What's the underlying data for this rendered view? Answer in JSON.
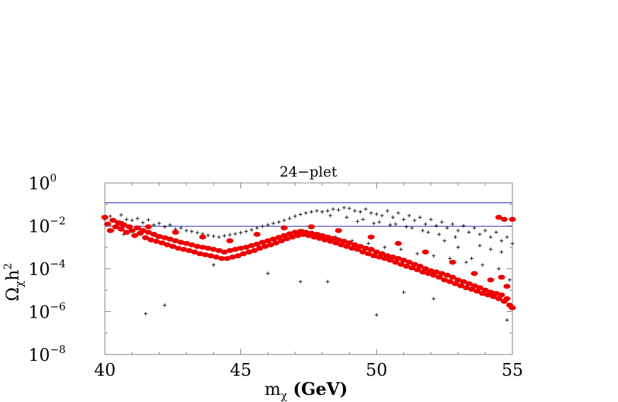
{
  "chart_data": {
    "type": "scatter",
    "title": "24−plet",
    "xlabel": "mχ (GeV)",
    "ylabel": "Ωχh²",
    "xlim": [
      40,
      55
    ],
    "ylim_log10": [
      -8,
      0
    ],
    "y_scale": "log",
    "x_ticks": [
      40,
      45,
      50,
      55
    ],
    "y_ticks": [
      {
        "base": "10",
        "exp": "0"
      },
      {
        "base": "10",
        "exp": "−2"
      },
      {
        "base": "10",
        "exp": "−4"
      },
      {
        "base": "10",
        "exp": "−6"
      },
      {
        "base": "10",
        "exp": "−8"
      }
    ],
    "reference_lines": [
      {
        "y": 0.12,
        "color": "#3a3acd"
      },
      {
        "y": 0.0095,
        "color": "#3a3acd"
      }
    ],
    "series": [
      {
        "marker": "plus",
        "color": "#000000",
        "points": [
          [
            40.0,
            0.02
          ],
          [
            40.2,
            0.028
          ],
          [
            40.4,
            0.015
          ],
          [
            40.6,
            0.032
          ],
          [
            40.8,
            0.02
          ],
          [
            41.0,
            0.018
          ],
          [
            41.2,
            0.022
          ],
          [
            41.4,
            0.014
          ],
          [
            41.6,
            0.019
          ],
          [
            41.8,
            0.011
          ],
          [
            42.0,
            0.013
          ],
          [
            42.2,
            0.009
          ],
          [
            42.4,
            0.011
          ],
          [
            42.6,
            0.007
          ],
          [
            42.8,
            0.008
          ],
          [
            43.0,
            0.006
          ],
          [
            43.2,
            0.0055
          ],
          [
            43.4,
            0.0048
          ],
          [
            43.6,
            0.0042
          ],
          [
            43.8,
            0.0036
          ],
          [
            44.0,
            0.0033
          ],
          [
            44.2,
            0.003
          ],
          [
            44.4,
            0.0034
          ],
          [
            44.6,
            0.0038
          ],
          [
            44.8,
            0.0042
          ],
          [
            45.0,
            0.0048
          ],
          [
            45.2,
            0.0055
          ],
          [
            45.4,
            0.0065
          ],
          [
            45.6,
            0.008
          ],
          [
            45.8,
            0.0095
          ],
          [
            46.0,
            0.011
          ],
          [
            46.2,
            0.013
          ],
          [
            46.4,
            0.015
          ],
          [
            46.6,
            0.018
          ],
          [
            46.8,
            0.022
          ],
          [
            47.0,
            0.028
          ],
          [
            47.2,
            0.034
          ],
          [
            47.4,
            0.04
          ],
          [
            47.6,
            0.045
          ],
          [
            47.8,
            0.05
          ],
          [
            48.0,
            0.045
          ],
          [
            48.2,
            0.05
          ],
          [
            48.4,
            0.06
          ],
          [
            48.6,
            0.055
          ],
          [
            48.8,
            0.07
          ],
          [
            49.0,
            0.065
          ],
          [
            49.2,
            0.05
          ],
          [
            49.4,
            0.045
          ],
          [
            49.6,
            0.06
          ],
          [
            49.8,
            0.04
          ],
          [
            50.0,
            0.035
          ],
          [
            50.2,
            0.03
          ],
          [
            50.4,
            0.05
          ],
          [
            50.6,
            0.025
          ],
          [
            50.8,
            0.04
          ],
          [
            51.0,
            0.02
          ],
          [
            51.2,
            0.03
          ],
          [
            51.4,
            0.018
          ],
          [
            51.6,
            0.025
          ],
          [
            51.8,
            0.012
          ],
          [
            52.0,
            0.02
          ],
          [
            52.2,
            0.01
          ],
          [
            52.4,
            0.015
          ],
          [
            52.6,
            0.008
          ],
          [
            52.8,
            0.012
          ],
          [
            53.0,
            0.006
          ],
          [
            53.2,
            0.01
          ],
          [
            53.4,
            0.005
          ],
          [
            53.6,
            0.008
          ],
          [
            53.8,
            0.004
          ],
          [
            54.0,
            0.006
          ],
          [
            54.2,
            0.003
          ],
          [
            54.4,
            0.005
          ],
          [
            54.6,
            0.002
          ],
          [
            54.8,
            0.003
          ],
          [
            55.0,
            0.0015
          ],
          [
            40.3,
            0.006
          ],
          [
            40.7,
            0.004
          ],
          [
            41.3,
            0.005
          ],
          [
            41.9,
            0.003
          ],
          [
            42.5,
            0.002
          ],
          [
            43.1,
            0.0015
          ],
          [
            43.7,
            0.001
          ],
          [
            44.3,
            0.0007
          ],
          [
            44.9,
            0.0009
          ],
          [
            45.5,
            0.0012
          ],
          [
            46.1,
            0.002
          ],
          [
            46.7,
            0.004
          ],
          [
            47.3,
            0.006
          ],
          [
            47.9,
            0.004
          ],
          [
            48.5,
            0.003
          ],
          [
            49.1,
            0.002
          ],
          [
            49.7,
            0.0015
          ],
          [
            50.3,
            0.001
          ],
          [
            50.9,
            0.0008
          ],
          [
            51.5,
            0.0005
          ],
          [
            52.1,
            0.0004
          ],
          [
            52.7,
            0.0003
          ],
          [
            53.3,
            0.0002
          ],
          [
            53.9,
            0.00015
          ],
          [
            54.5,
            0.0001
          ],
          [
            54.9,
            3e-05
          ],
          [
            41.5,
            8e-07
          ],
          [
            42.2,
            2e-06
          ],
          [
            44.0,
            0.00015
          ],
          [
            46.0,
            6e-05
          ],
          [
            47.2,
            2.5e-05
          ],
          [
            48.2,
            2.5e-05
          ],
          [
            50.0,
            7e-07
          ],
          [
            51.0,
            8e-06
          ],
          [
            52.1,
            4e-06
          ],
          [
            54.8,
            4e-07
          ],
          [
            53.5,
            0.0003
          ],
          [
            53.0,
            0.001
          ],
          [
            52.5,
            0.002
          ],
          [
            51.9,
            0.005
          ],
          [
            51.3,
            0.008
          ],
          [
            50.7,
            0.012
          ],
          [
            50.1,
            0.015
          ],
          [
            49.5,
            0.02
          ],
          [
            48.9,
            0.025
          ],
          [
            48.3,
            0.03
          ],
          [
            54.2,
            0.0008
          ],
          [
            54.6,
            0.0006
          ],
          [
            53.8,
            0.0012
          ],
          [
            52.9,
            0.003
          ],
          [
            52.3,
            0.004
          ],
          [
            51.7,
            0.006
          ],
          [
            51.1,
            0.009
          ],
          [
            50.5,
            0.011
          ],
          [
            49.9,
            0.013
          ],
          [
            49.3,
            0.016
          ]
        ]
      },
      {
        "marker": "ellipse",
        "color": "#ee0000",
        "points": [
          [
            40.0,
            0.025
          ],
          [
            40.1,
            0.012
          ],
          [
            40.2,
            0.006
          ],
          [
            40.3,
            0.018
          ],
          [
            40.4,
            0.009
          ],
          [
            40.5,
            0.014
          ],
          [
            40.6,
            0.007
          ],
          [
            40.7,
            0.011
          ],
          [
            40.8,
            0.005
          ],
          [
            40.9,
            0.009
          ],
          [
            41.0,
            0.006
          ],
          [
            41.1,
            0.0035
          ],
          [
            41.2,
            0.008
          ],
          [
            41.3,
            0.0045
          ],
          [
            41.4,
            0.006
          ],
          [
            41.5,
            0.0028
          ],
          [
            41.6,
            0.005
          ],
          [
            41.7,
            0.0022
          ],
          [
            41.8,
            0.004
          ],
          [
            41.9,
            0.0019
          ],
          [
            42.0,
            0.0032
          ],
          [
            42.1,
            0.0016
          ],
          [
            42.2,
            0.0028
          ],
          [
            42.3,
            0.0013
          ],
          [
            42.4,
            0.0024
          ],
          [
            42.5,
            0.0011
          ],
          [
            42.6,
            0.002
          ],
          [
            42.7,
            0.0009
          ],
          [
            42.8,
            0.0017
          ],
          [
            42.9,
            0.0008
          ],
          [
            43.0,
            0.0015
          ],
          [
            43.1,
            0.0007
          ],
          [
            43.2,
            0.0013
          ],
          [
            43.3,
            0.0006
          ],
          [
            43.4,
            0.0011
          ],
          [
            43.5,
            0.0005
          ],
          [
            43.6,
            0.001
          ],
          [
            43.7,
            0.00045
          ],
          [
            43.8,
            0.0009
          ],
          [
            43.9,
            0.0004
          ],
          [
            44.0,
            0.0008
          ],
          [
            44.1,
            0.00035
          ],
          [
            44.2,
            0.0007
          ],
          [
            44.3,
            0.0003
          ],
          [
            44.4,
            0.0006
          ],
          [
            44.5,
            0.0003
          ],
          [
            44.6,
            0.0007
          ],
          [
            44.7,
            0.00035
          ],
          [
            44.8,
            0.0008
          ],
          [
            44.9,
            0.0004
          ],
          [
            45.0,
            0.0009
          ],
          [
            45.1,
            0.0005
          ],
          [
            45.2,
            0.001
          ],
          [
            45.3,
            0.0006
          ],
          [
            45.4,
            0.0012
          ],
          [
            45.5,
            0.0007
          ],
          [
            45.6,
            0.0014
          ],
          [
            45.7,
            0.0009
          ],
          [
            45.8,
            0.0017
          ],
          [
            45.9,
            0.0011
          ],
          [
            46.0,
            0.002
          ],
          [
            46.1,
            0.0013
          ],
          [
            46.2,
            0.0024
          ],
          [
            46.3,
            0.0016
          ],
          [
            46.4,
            0.0029
          ],
          [
            46.5,
            0.002
          ],
          [
            46.6,
            0.0035
          ],
          [
            46.7,
            0.0025
          ],
          [
            46.8,
            0.0042
          ],
          [
            46.9,
            0.003
          ],
          [
            47.0,
            0.005
          ],
          [
            47.1,
            0.0035
          ],
          [
            47.2,
            0.0055
          ],
          [
            47.3,
            0.004
          ],
          [
            47.4,
            0.005
          ],
          [
            47.5,
            0.0035
          ],
          [
            47.6,
            0.0045
          ],
          [
            47.7,
            0.003
          ],
          [
            47.8,
            0.004
          ],
          [
            47.9,
            0.0026
          ],
          [
            48.0,
            0.0035
          ],
          [
            48.1,
            0.0022
          ],
          [
            48.2,
            0.003
          ],
          [
            48.3,
            0.0019
          ],
          [
            48.4,
            0.0026
          ],
          [
            48.5,
            0.0016
          ],
          [
            48.6,
            0.0022
          ],
          [
            48.7,
            0.0013
          ],
          [
            48.8,
            0.0019
          ],
          [
            48.9,
            0.0011
          ],
          [
            49.0,
            0.0016
          ],
          [
            49.1,
            0.0009
          ],
          [
            49.2,
            0.0013
          ],
          [
            49.3,
            0.0008
          ],
          [
            49.4,
            0.0011
          ],
          [
            49.5,
            0.0006
          ],
          [
            49.6,
            0.0009
          ],
          [
            49.7,
            0.0005
          ],
          [
            49.8,
            0.0008
          ],
          [
            49.9,
            0.0004
          ],
          [
            50.0,
            0.0006
          ],
          [
            50.1,
            0.00035
          ],
          [
            50.2,
            0.0005
          ],
          [
            50.3,
            0.0003
          ],
          [
            50.4,
            0.0004
          ],
          [
            50.5,
            0.00025
          ],
          [
            50.6,
            0.00035
          ],
          [
            50.7,
            0.0002
          ],
          [
            50.8,
            0.0003
          ],
          [
            50.9,
            0.00016
          ],
          [
            51.0,
            0.00025
          ],
          [
            51.1,
            0.00013
          ],
          [
            51.2,
            0.0002
          ],
          [
            51.3,
            0.00011
          ],
          [
            51.4,
            0.00016
          ],
          [
            51.5,
            9e-05
          ],
          [
            51.6,
            0.00013
          ],
          [
            51.7,
            7e-05
          ],
          [
            51.8,
            0.0001
          ],
          [
            51.9,
            6e-05
          ],
          [
            52.0,
            8e-05
          ],
          [
            52.1,
            5e-05
          ],
          [
            52.2,
            7e-05
          ],
          [
            52.3,
            4e-05
          ],
          [
            52.4,
            6e-05
          ],
          [
            52.5,
            3e-05
          ],
          [
            52.6,
            5e-05
          ],
          [
            52.7,
            2.5e-05
          ],
          [
            52.8,
            4e-05
          ],
          [
            52.9,
            2e-05
          ],
          [
            53.0,
            3e-05
          ],
          [
            53.1,
            1.6e-05
          ],
          [
            53.2,
            2.5e-05
          ],
          [
            53.3,
            1.3e-05
          ],
          [
            53.4,
            2e-05
          ],
          [
            53.5,
            1.1e-05
          ],
          [
            53.6,
            1.6e-05
          ],
          [
            53.7,
            9e-06
          ],
          [
            53.8,
            1.3e-05
          ],
          [
            53.9,
            7e-06
          ],
          [
            54.0,
            1e-05
          ],
          [
            54.1,
            6e-06
          ],
          [
            54.2,
            8e-06
          ],
          [
            54.3,
            5e-06
          ],
          [
            54.4,
            7e-06
          ],
          [
            54.5,
            4e-06
          ],
          [
            54.6,
            6e-06
          ],
          [
            54.7,
            3e-06
          ],
          [
            54.8,
            4e-06
          ],
          [
            54.9,
            2e-06
          ],
          [
            55.0,
            1.5e-06
          ],
          [
            54.8,
            1.5e-05
          ],
          [
            54.6,
            4e-05
          ],
          [
            54.5,
            0.025
          ],
          [
            54.7,
            0.02
          ],
          [
            55.0,
            0.02
          ],
          [
            54.2,
            3e-05
          ],
          [
            53.6,
            6e-05
          ],
          [
            52.8,
            0.0002
          ],
          [
            51.8,
            0.0006
          ],
          [
            50.8,
            0.0015
          ],
          [
            49.8,
            0.003
          ],
          [
            48.6,
            0.006
          ],
          [
            47.6,
            0.009
          ],
          [
            46.6,
            0.008
          ],
          [
            45.6,
            0.004
          ],
          [
            44.6,
            0.002
          ],
          [
            43.6,
            0.003
          ],
          [
            42.6,
            0.005
          ],
          [
            41.6,
            0.009
          ],
          [
            40.6,
            0.013
          ]
        ]
      }
    ]
  }
}
